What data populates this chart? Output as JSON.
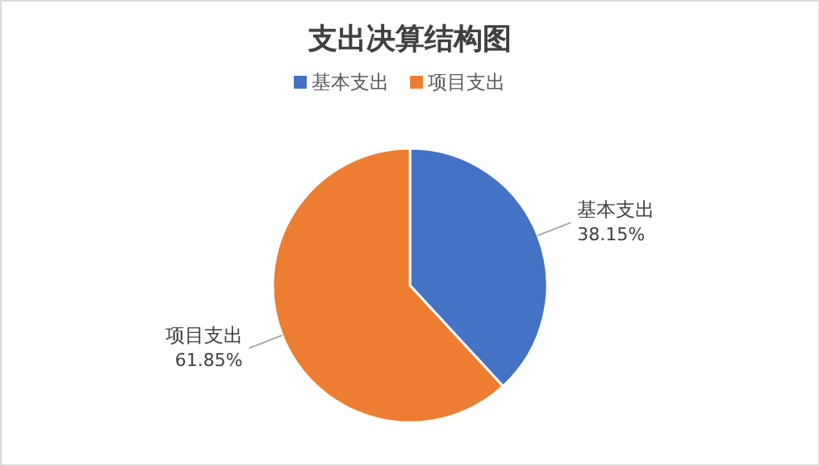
{
  "chart_data": {
    "type": "pie",
    "title": "支出决算结构图",
    "categories": [
      "基本支出",
      "项目支出"
    ],
    "values": [
      38.15,
      61.85
    ],
    "colors": [
      "#4472c4",
      "#ed7d31"
    ],
    "value_labels": [
      "38.15%",
      "61.85%"
    ],
    "legend": "top"
  }
}
